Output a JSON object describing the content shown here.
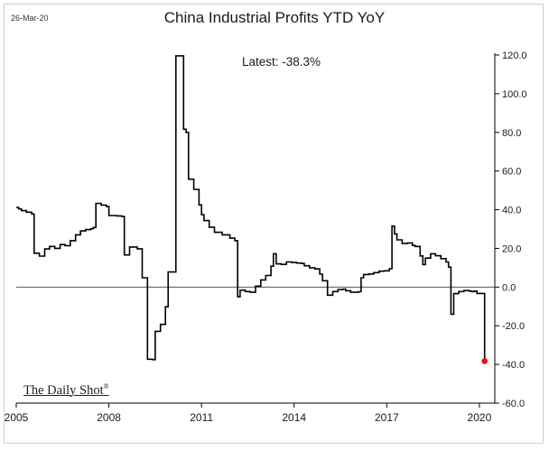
{
  "header": {
    "date": "26-Mar-20",
    "title": "China Industrial Profits YTD YoY",
    "latest_text": "Latest:  -38.3%",
    "brand": "The Daily Shot",
    "brand_mark": "®"
  },
  "chart_data": {
    "type": "line",
    "title": "China Industrial Profits YTD YoY",
    "xlabel": "",
    "ylabel": "",
    "x_ticks": [
      "2005",
      "2008",
      "2011",
      "2014",
      "2017",
      "2020"
    ],
    "x_tick_years": [
      2005,
      2008,
      2011,
      2014,
      2017,
      2020
    ],
    "y_ticks": [
      "120.0",
      "100.0",
      "80.0",
      "60.0",
      "40.0",
      "20.0",
      "0.0",
      "-20.0",
      "-40.0",
      "-60.0"
    ],
    "y_tick_values": [
      120,
      100,
      80,
      60,
      40,
      20,
      0,
      -20,
      -40,
      -60
    ],
    "xlim": [
      2005.0,
      2020.5
    ],
    "ylim": [
      -60,
      120
    ],
    "y_axis_side": "right",
    "grid": false,
    "zero_line": true,
    "line_color": "#000000",
    "latest_point_color": "#e81010",
    "series": [
      {
        "points": [
          [
            2005.0,
            41.2
          ],
          [
            2005.08,
            40.4
          ],
          [
            2005.17,
            39.5
          ],
          [
            2005.33,
            38.7
          ],
          [
            2005.5,
            37.8
          ],
          [
            2005.58,
            17.5
          ],
          [
            2005.75,
            16.0
          ],
          [
            2005.92,
            19.7
          ],
          [
            2006.08,
            21.0
          ],
          [
            2006.25,
            20.0
          ],
          [
            2006.42,
            22.0
          ],
          [
            2006.58,
            21.4
          ],
          [
            2006.75,
            24.0
          ],
          [
            2006.92,
            27.0
          ],
          [
            2007.08,
            29.0
          ],
          [
            2007.25,
            29.7
          ],
          [
            2007.42,
            30.2
          ],
          [
            2007.5,
            30.8
          ],
          [
            2007.58,
            43.3
          ],
          [
            2007.75,
            42.4
          ],
          [
            2007.92,
            41.7
          ],
          [
            2008.0,
            37.0
          ],
          [
            2008.25,
            36.8
          ],
          [
            2008.42,
            36.5
          ],
          [
            2008.5,
            16.6
          ],
          [
            2008.67,
            20.7
          ],
          [
            2008.92,
            19.8
          ],
          [
            2009.08,
            4.8
          ],
          [
            2009.25,
            -37.3
          ],
          [
            2009.42,
            -37.5
          ],
          [
            2009.5,
            -22.9
          ],
          [
            2009.67,
            -19.3
          ],
          [
            2009.83,
            -10.2
          ],
          [
            2009.92,
            7.8
          ],
          [
            2010.08,
            7.8
          ],
          [
            2010.17,
            119.6
          ],
          [
            2010.33,
            119.6
          ],
          [
            2010.42,
            81.6
          ],
          [
            2010.5,
            80.0
          ],
          [
            2010.58,
            55.8
          ],
          [
            2010.75,
            50.5
          ],
          [
            2010.92,
            42.5
          ],
          [
            2011.0,
            37.4
          ],
          [
            2011.08,
            34.4
          ],
          [
            2011.25,
            31.0
          ],
          [
            2011.42,
            28.3
          ],
          [
            2011.67,
            27.0
          ],
          [
            2011.92,
            25.3
          ],
          [
            2012.08,
            24.0
          ],
          [
            2012.17,
            -5.0
          ],
          [
            2012.25,
            -1.6
          ],
          [
            2012.42,
            -2.3
          ],
          [
            2012.58,
            -2.7
          ],
          [
            2012.75,
            0.5
          ],
          [
            2012.92,
            3.7
          ],
          [
            2013.08,
            6.0
          ],
          [
            2013.25,
            10.8
          ],
          [
            2013.33,
            17.2
          ],
          [
            2013.42,
            12.0
          ],
          [
            2013.58,
            11.7
          ],
          [
            2013.75,
            13.0
          ],
          [
            2013.92,
            12.7
          ],
          [
            2014.08,
            12.4
          ],
          [
            2014.25,
            12.2
          ],
          [
            2014.33,
            11.0
          ],
          [
            2014.5,
            10.0
          ],
          [
            2014.67,
            9.4
          ],
          [
            2014.83,
            6.7
          ],
          [
            2014.92,
            3.3
          ],
          [
            2015.08,
            -4.2
          ],
          [
            2015.25,
            -2.3
          ],
          [
            2015.42,
            -1.3
          ],
          [
            2015.58,
            -1.0
          ],
          [
            2015.67,
            -1.9
          ],
          [
            2015.83,
            -2.7
          ],
          [
            2016.08,
            -2.4
          ],
          [
            2016.17,
            4.8
          ],
          [
            2016.25,
            6.5
          ],
          [
            2016.42,
            6.8
          ],
          [
            2016.58,
            7.5
          ],
          [
            2016.75,
            8.2
          ],
          [
            2016.92,
            8.4
          ],
          [
            2017.08,
            9.5
          ],
          [
            2017.17,
            31.5
          ],
          [
            2017.25,
            27.5
          ],
          [
            2017.33,
            24.4
          ],
          [
            2017.5,
            22.6
          ],
          [
            2017.67,
            22.8
          ],
          [
            2017.83,
            21.5
          ],
          [
            2017.92,
            21.0
          ],
          [
            2018.08,
            16.1
          ],
          [
            2018.17,
            11.6
          ],
          [
            2018.25,
            15.0
          ],
          [
            2018.42,
            17.2
          ],
          [
            2018.58,
            16.2
          ],
          [
            2018.75,
            14.7
          ],
          [
            2018.92,
            13.0
          ],
          [
            2019.0,
            10.3
          ],
          [
            2019.08,
            -14.0
          ],
          [
            2019.17,
            -3.4
          ],
          [
            2019.33,
            -2.3
          ],
          [
            2019.5,
            -1.8
          ],
          [
            2019.67,
            -2.1
          ],
          [
            2019.75,
            -2.3
          ],
          [
            2019.83,
            -2.1
          ],
          [
            2019.92,
            -3.3
          ],
          [
            2020.08,
            -3.3
          ],
          [
            2020.17,
            -38.3
          ]
        ]
      }
    ],
    "latest_point": [
      2020.17,
      -38.3
    ]
  }
}
